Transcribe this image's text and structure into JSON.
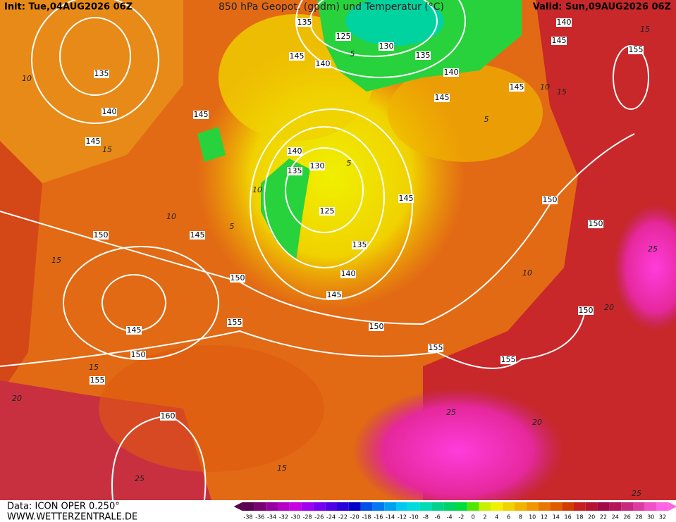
{
  "header": {
    "init": "Init: Tue,04AUG2026 06Z",
    "title": "850 hPa Geopot. (gpdm) und Temperatur (°C)",
    "valid": "Valid: Sun,09AUG2026 06Z"
  },
  "map": {
    "geopotential_labels": [
      135,
      125,
      130,
      135,
      140,
      145,
      140,
      145,
      155,
      145,
      145,
      140,
      135,
      140,
      145,
      145,
      140,
      135,
      130,
      125,
      135,
      140,
      145,
      145,
      150,
      150,
      145,
      150,
      150,
      145,
      155,
      150,
      150,
      155,
      155,
      155,
      150,
      160
    ],
    "isotherm_labels": [
      10,
      15,
      10,
      5,
      15,
      10,
      15,
      5,
      10,
      20,
      25,
      20,
      15,
      25,
      25,
      15,
      20,
      25,
      15,
      5,
      5,
      10
    ]
  },
  "legend": {
    "ticks": [
      -38,
      -36,
      -34,
      -32,
      -30,
      -28,
      -26,
      -24,
      -22,
      -20,
      -18,
      -16,
      -14,
      -12,
      -10,
      -8,
      -6,
      -4,
      -2,
      0,
      2,
      4,
      6,
      8,
      10,
      12,
      14,
      16,
      18,
      20,
      22,
      24,
      26,
      28,
      30,
      32
    ],
    "colors": [
      "#5a0050",
      "#780070",
      "#9600a0",
      "#b400c8",
      "#c800e6",
      "#a000f0",
      "#7800f0",
      "#5000e6",
      "#2800dc",
      "#0000c8",
      "#0050e6",
      "#0078f0",
      "#00a0f0",
      "#00c8f0",
      "#00dcdc",
      "#00dcb4",
      "#00d28c",
      "#00d264",
      "#00dc3c",
      "#50e600",
      "#c8f000",
      "#f0f000",
      "#f0d200",
      "#f0b400",
      "#f09600",
      "#e67800",
      "#e05a00",
      "#d23c00",
      "#c81e1e",
      "#b41432",
      "#a00a46",
      "#b4145a",
      "#c8287d",
      "#dc3ca0",
      "#f050c8",
      "#ff64e6"
    ]
  },
  "footer": {
    "data": "Data: ICON OPER 0.250°",
    "site": "WWW.WETTERZENTRALE.DE"
  }
}
